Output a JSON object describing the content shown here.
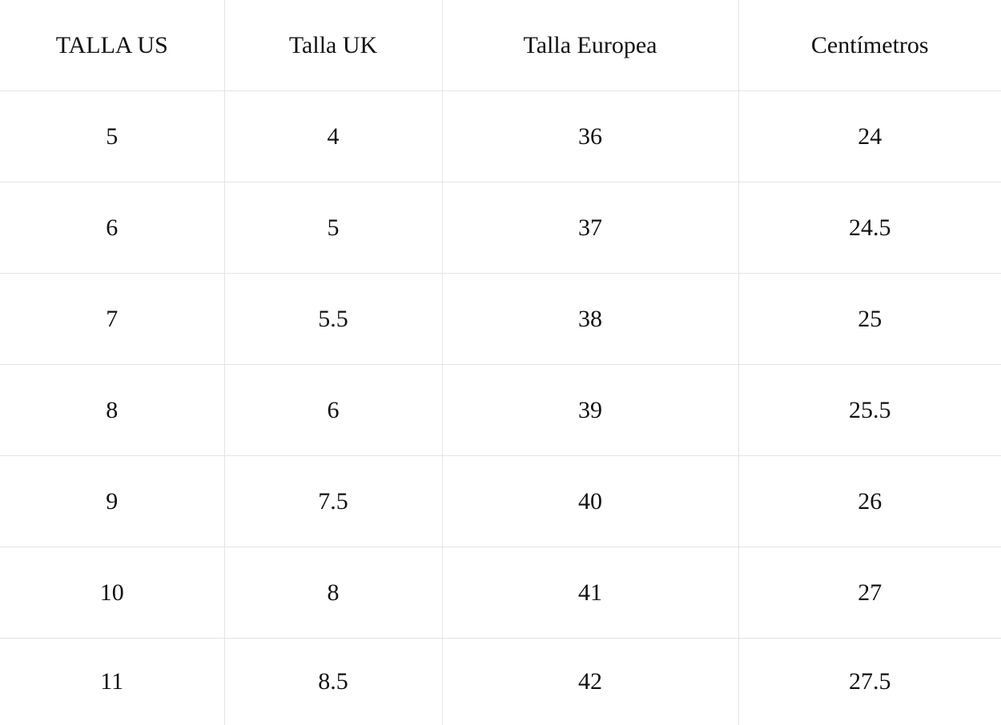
{
  "table": {
    "headers": [
      "TALLA US",
      "Talla UK",
      "Talla Europea",
      "Centímetros"
    ],
    "rows": [
      [
        "5",
        "4",
        "36",
        "24"
      ],
      [
        "6",
        "5",
        "37",
        "24.5"
      ],
      [
        "7",
        "5.5",
        "38",
        "25"
      ],
      [
        "8",
        "6",
        "39",
        "25.5"
      ],
      [
        "9",
        "7.5",
        "40",
        "26"
      ],
      [
        "10",
        "8",
        "41",
        "27"
      ],
      [
        "11",
        "8.5",
        "42",
        "27.5"
      ]
    ]
  }
}
